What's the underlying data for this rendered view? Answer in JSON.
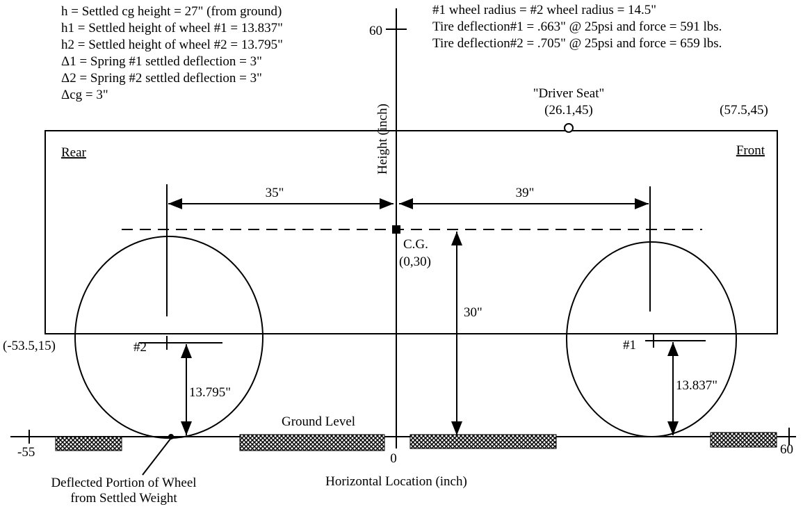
{
  "notes_left": [
    "h = Settled cg height = 27\" (from ground)",
    "h1 =  Settled height of wheel #1 = 13.837\"",
    "h2 =  Settled height of wheel #2 = 13.795\"",
    "Δ1 = Spring #1 settled deflection = 3\"",
    "Δ2 = Spring #2 settled deflection = 3\"",
    "Δcg = 3\""
  ],
  "notes_right": [
    "#1 wheel radius = #2 wheel radius = 14.5\"",
    "Tire deflection#1 = .663\" @ 25psi and force = 591 lbs.",
    "Tire deflection#2 = .705\" @ 25psi and force = 659 lbs."
  ],
  "labels": {
    "driver_seat": "\"Driver Seat\"",
    "driver_seat_coord": "(26.1,45)",
    "corner_coord": "(57.5,45)",
    "rear": "Rear",
    "front": "Front",
    "dim_rear": "35\"",
    "dim_front": "39\"",
    "dim_cg": "30\"",
    "dim_wheel2": "13.795\"",
    "dim_wheel1": "13.837\"",
    "cg": "C.G.",
    "cg_coord": "(0,30)",
    "rear_coord": "(-53.5,15)",
    "wheel2": "#2",
    "wheel1": "#1",
    "ground": "Ground Level",
    "deflected": [
      "Deflected Portion of Wheel",
      "from Settled Weight"
    ]
  },
  "axes": {
    "x_label": "Horizontal Location (inch)",
    "y_label": "Height (inch)",
    "x_min": "-55",
    "x_zero": "0",
    "x_max": "60",
    "y_max": "60"
  }
}
